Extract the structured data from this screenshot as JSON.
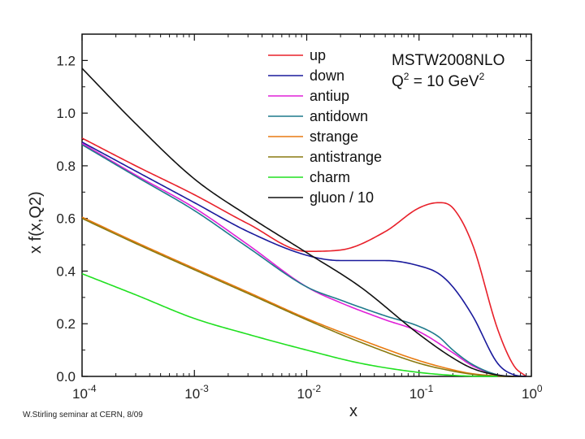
{
  "footer_text": "W.Stirling seminar at CERN, 8/09",
  "chart_data": {
    "type": "line",
    "title": "",
    "xlabel": "x",
    "ylabel": "x f(x,Q2)",
    "xscale": "log",
    "xlim": [
      0.0001,
      1
    ],
    "ylim": [
      0.0,
      1.3
    ],
    "grid": false,
    "x_ticks": [
      {
        "value": 0.0001,
        "base": "10",
        "exp": "-4"
      },
      {
        "value": 0.001,
        "base": "10",
        "exp": "-3"
      },
      {
        "value": 0.01,
        "base": "10",
        "exp": "-2"
      },
      {
        "value": 0.1,
        "base": "10",
        "exp": "-1"
      },
      {
        "value": 1,
        "base": "10",
        "exp": "0"
      }
    ],
    "y_ticks": [
      {
        "value": 0.0,
        "label": "0.0"
      },
      {
        "value": 0.2,
        "label": "0.2"
      },
      {
        "value": 0.4,
        "label": "0.4"
      },
      {
        "value": 0.6,
        "label": "0.6"
      },
      {
        "value": 0.8,
        "label": "0.8"
      },
      {
        "value": 1.0,
        "label": "1.0"
      },
      {
        "value": 1.2,
        "label": "1.2"
      }
    ],
    "annotation": {
      "line1": "MSTW2008NLO",
      "q_prefix": "Q",
      "q_sup": "2",
      "q_mid": " = 10 GeV",
      "q_sup2": "2"
    },
    "legend_position": "top-right",
    "series": [
      {
        "name": "up",
        "color": "#e8202a",
        "x": [
          0.0001,
          0.0003,
          0.001,
          0.003,
          0.01,
          0.02,
          0.05,
          0.1,
          0.15,
          0.2,
          0.3,
          0.5,
          0.7,
          0.9
        ],
        "y": [
          0.905,
          0.8,
          0.69,
          0.58,
          0.475,
          0.48,
          0.55,
          0.64,
          0.66,
          0.64,
          0.5,
          0.18,
          0.04,
          0.0
        ]
      },
      {
        "name": "down",
        "color": "#1a1a9c",
        "x": [
          0.0001,
          0.0003,
          0.001,
          0.003,
          0.01,
          0.02,
          0.05,
          0.1,
          0.15,
          0.2,
          0.3,
          0.5,
          0.7,
          0.9
        ],
        "y": [
          0.89,
          0.78,
          0.66,
          0.55,
          0.46,
          0.44,
          0.44,
          0.42,
          0.39,
          0.34,
          0.23,
          0.05,
          0.006,
          0.0
        ]
      },
      {
        "name": "antiup",
        "color": "#e020d8",
        "x": [
          0.0001,
          0.0003,
          0.001,
          0.003,
          0.01,
          0.02,
          0.05,
          0.1,
          0.2,
          0.3,
          0.5,
          0.7
        ],
        "y": [
          0.885,
          0.765,
          0.64,
          0.5,
          0.34,
          0.28,
          0.215,
          0.17,
          0.09,
          0.04,
          0.006,
          0.0
        ]
      },
      {
        "name": "antidown",
        "color": "#1f7a8c",
        "x": [
          0.0001,
          0.0003,
          0.001,
          0.003,
          0.01,
          0.02,
          0.05,
          0.1,
          0.15,
          0.2,
          0.3,
          0.5,
          0.7
        ],
        "y": [
          0.88,
          0.76,
          0.63,
          0.49,
          0.34,
          0.29,
          0.23,
          0.19,
          0.15,
          0.1,
          0.045,
          0.006,
          0.0
        ]
      },
      {
        "name": "strange",
        "color": "#e87a10",
        "x": [
          0.0001,
          0.0003,
          0.001,
          0.003,
          0.01,
          0.03,
          0.1,
          0.2,
          0.3,
          0.5,
          0.7
        ],
        "y": [
          0.605,
          0.51,
          0.41,
          0.32,
          0.22,
          0.14,
          0.06,
          0.025,
          0.01,
          0.002,
          0.0
        ]
      },
      {
        "name": "antistrange",
        "color": "#8a7a10",
        "x": [
          0.0001,
          0.0003,
          0.001,
          0.003,
          0.01,
          0.03,
          0.1,
          0.2,
          0.3,
          0.5,
          0.7
        ],
        "y": [
          0.6,
          0.505,
          0.405,
          0.315,
          0.215,
          0.13,
          0.05,
          0.02,
          0.008,
          0.001,
          0.0
        ]
      },
      {
        "name": "charm",
        "color": "#20e020",
        "x": [
          0.0001,
          0.0003,
          0.001,
          0.003,
          0.01,
          0.03,
          0.1,
          0.2,
          0.3,
          0.5
        ],
        "y": [
          0.39,
          0.31,
          0.22,
          0.16,
          0.1,
          0.05,
          0.015,
          0.004,
          0.001,
          0.0
        ]
      },
      {
        "name": "gluon / 10",
        "color": "#111111",
        "x": [
          0.0001,
          0.0003,
          0.001,
          0.003,
          0.01,
          0.03,
          0.1,
          0.2,
          0.3,
          0.5,
          0.7,
          0.9
        ],
        "y": [
          1.17,
          0.96,
          0.75,
          0.61,
          0.47,
          0.34,
          0.16,
          0.07,
          0.03,
          0.005,
          0.0,
          0.0
        ]
      }
    ]
  }
}
